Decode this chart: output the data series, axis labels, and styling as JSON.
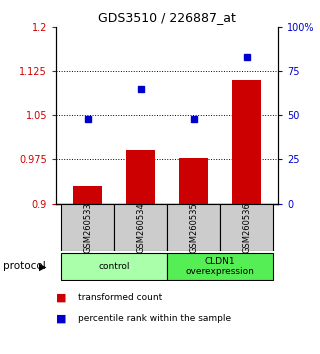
{
  "title": "GDS3510 / 226887_at",
  "samples": [
    "GSM260533",
    "GSM260534",
    "GSM260535",
    "GSM260536"
  ],
  "red_values": [
    0.93,
    0.99,
    0.977,
    1.11
  ],
  "blue_values": [
    48,
    65,
    48,
    83
  ],
  "bar_bottom": 0.9,
  "ylim_left": [
    0.9,
    1.2
  ],
  "ylim_right": [
    0,
    100
  ],
  "yticks_left": [
    0.9,
    0.975,
    1.05,
    1.125,
    1.2
  ],
  "ytick_labels_left": [
    "0.9",
    "0.975",
    "1.05",
    "1.125",
    "1.2"
  ],
  "yticks_right": [
    0,
    25,
    50,
    75,
    100
  ],
  "ytick_labels_right": [
    "0",
    "25",
    "50",
    "75",
    "100%"
  ],
  "hlines": [
    0.975,
    1.05,
    1.125
  ],
  "bar_color": "#cc0000",
  "dot_color": "#0000cc",
  "bar_width": 0.55,
  "group_colors": [
    "#aaffaa",
    "#55ee55"
  ],
  "group_labels": [
    "control",
    "CLDN1\noverexpression"
  ],
  "protocol_label": "protocol",
  "legend_red": "transformed count",
  "legend_blue": "percentile rank within the sample",
  "bg_color": "#ffffff",
  "tick_color_left": "#cc0000",
  "tick_color_right": "#0000cc",
  "sample_box_color": "#cccccc"
}
